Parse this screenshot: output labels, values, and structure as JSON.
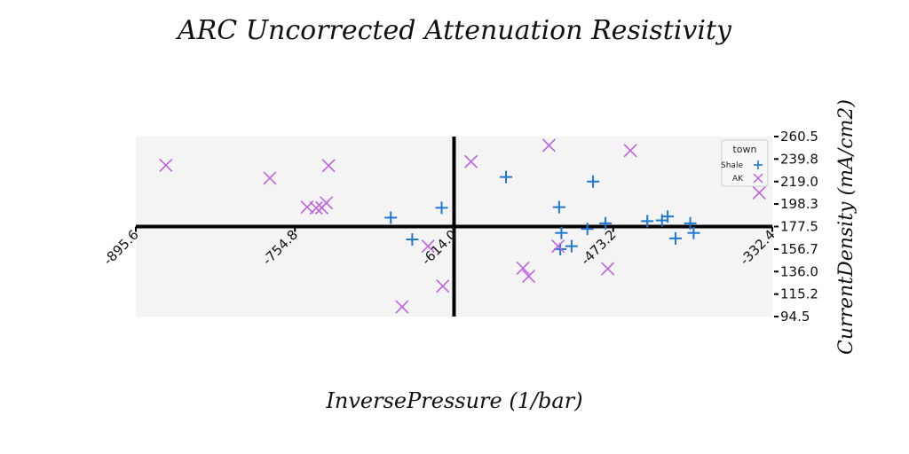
{
  "chart_data": {
    "type": "scatter",
    "title": "ARC Uncorrected Attenuation Resistivity",
    "xlabel": "InversePressure (1/bar)",
    "ylabel": "CurrentDensity (mA/cm2)",
    "xlim": [
      -895.6,
      -332.4
    ],
    "ylim": [
      94.5,
      260.5
    ],
    "x_ticks": [
      "-895.6",
      "-754.8",
      "-614.0",
      "-473.2",
      "-332.4"
    ],
    "y_ticks": [
      "260.5",
      "239.8",
      "219.0",
      "198.3",
      "177.5",
      "156.7",
      "136.0",
      "115.2",
      "94.5"
    ],
    "x_axis_crosses_y": 177.5,
    "y_axis_crosses_x": -614.0,
    "grid": false,
    "legend": {
      "title": "town",
      "placement": "top-right"
    },
    "series": [
      {
        "name": "Shale",
        "marker": "plus",
        "color": "#1f77d4",
        "x": [
          -670,
          -651,
          -625,
          -568,
          -521,
          -519,
          -520,
          -510,
          -496,
          -491,
          -480,
          -443,
          -418,
          -430,
          -425,
          -405,
          -402
        ],
        "y": [
          185.7,
          165.6,
          194.8,
          223.2,
          195.4,
          171.6,
          156.7,
          159.4,
          175.3,
          219.0,
          180.5,
          182.5,
          166.6,
          183.2,
          186.8,
          180.5,
          171.6
        ]
      },
      {
        "name": "AK",
        "marker": "x",
        "color": "#c061e0",
        "x": [
          -869,
          -777,
          -744,
          -731,
          -736,
          -727,
          -725,
          -637,
          -660,
          -624,
          -599,
          -548,
          -553,
          -530,
          -522,
          -478,
          -458,
          -344
        ],
        "y": [
          234.0,
          222.2,
          195.4,
          194.8,
          194.6,
          199.3,
          233.7,
          159.4,
          103.4,
          122.6,
          237.3,
          131.7,
          139.1,
          252.4,
          159.4,
          138.6,
          247.6,
          208.6
        ]
      }
    ]
  }
}
